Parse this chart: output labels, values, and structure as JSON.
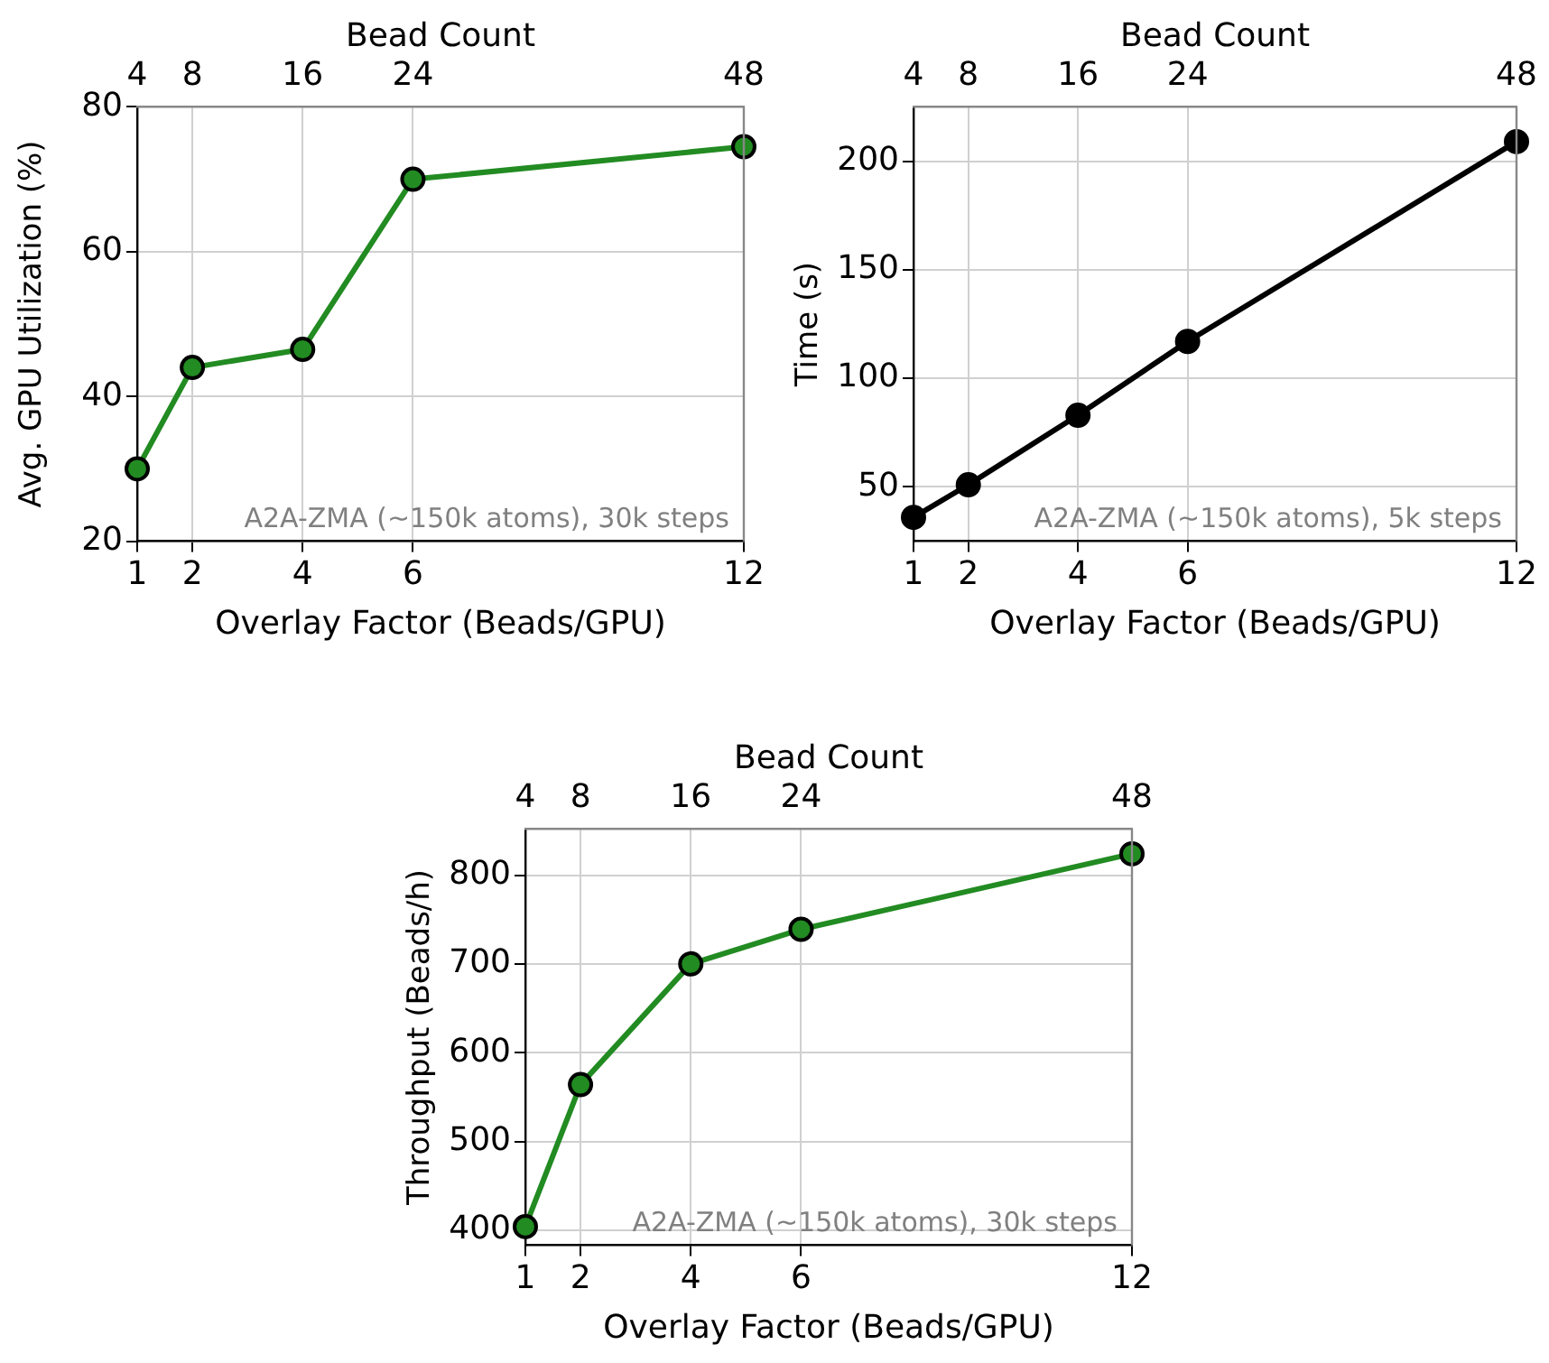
{
  "chart_data": [
    {
      "type": "line",
      "xlabel": "Overlay Factor (Beads/GPU)",
      "ylabel": "Avg. GPU Utilization (%)",
      "x2label": "Bead Count",
      "x": [
        1,
        2,
        4,
        6,
        12
      ],
      "series": [
        {
          "color": "#228b22",
          "values": [
            30,
            44,
            46.5,
            70,
            74.5
          ]
        }
      ],
      "xlim": [
        1,
        12
      ],
      "xticks": [
        1,
        2,
        4,
        6,
        12
      ],
      "ylim": [
        20,
        80
      ],
      "yticks": [
        20,
        40,
        60,
        80
      ],
      "x2lim": [
        4,
        48
      ],
      "x2ticks": [
        4,
        8,
        16,
        24,
        48
      ],
      "annotations": [
        "A2A-ZMA (~150k atoms), 30k steps"
      ],
      "grid": true,
      "marker": "circle"
    },
    {
      "type": "line",
      "xlabel": "Overlay Factor (Beads/GPU)",
      "ylabel": "Time (s)",
      "x2label": "Bead Count",
      "x": [
        1,
        2,
        4,
        6,
        12
      ],
      "series": [
        {
          "color": "#000000",
          "values": [
            36,
            51,
            83,
            117,
            209
          ]
        }
      ],
      "xlim": [
        1,
        12
      ],
      "xticks": [
        1,
        2,
        4,
        6,
        12
      ],
      "ylim": [
        25,
        225
      ],
      "yticks": [
        50,
        100,
        150,
        200
      ],
      "x2lim": [
        4,
        48
      ],
      "x2ticks": [
        4,
        8,
        16,
        24,
        48
      ],
      "annotations": [
        "A2A-ZMA (~150k atoms), 5k steps"
      ],
      "grid": true,
      "marker": "circle"
    },
    {
      "type": "line",
      "xlabel": "Overlay Factor (Beads/GPU)",
      "ylabel": "Throughput (Beads/h)",
      "x2label": "Bead Count",
      "x": [
        1,
        2,
        4,
        6,
        12
      ],
      "series": [
        {
          "color": "#228b22",
          "values": [
            404,
            564,
            700,
            739,
            824
          ]
        }
      ],
      "xlim": [
        1,
        12
      ],
      "xticks": [
        1,
        2,
        4,
        6,
        12
      ],
      "ylim": [
        383,
        852
      ],
      "yticks": [
        400,
        500,
        600,
        700,
        800
      ],
      "x2lim": [
        4,
        48
      ],
      "x2ticks": [
        4,
        8,
        16,
        24,
        48
      ],
      "annotations": [
        "A2A-ZMA (~150k atoms), 30k steps"
      ],
      "grid": true,
      "marker": "circle"
    }
  ]
}
